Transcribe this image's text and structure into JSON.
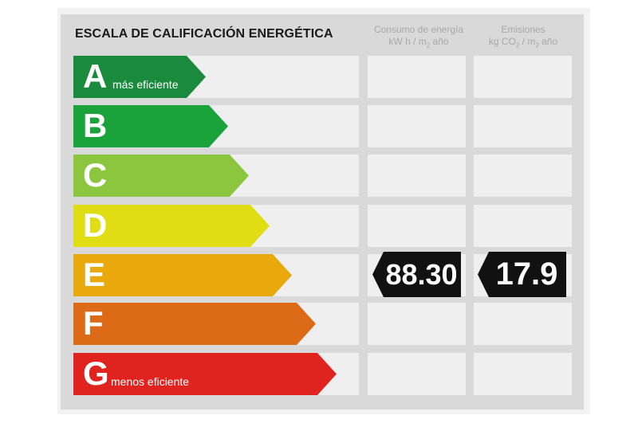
{
  "title": "ESCALA DE CALIFICACIÓN ENERGÉTICA",
  "columns": {
    "consumo": {
      "line1": "Consumo de energía",
      "line2_a": "kW h / m",
      "line2_sub": "2",
      "line2_b": " año"
    },
    "emisiones": {
      "line1": "Emisiones",
      "line2_a": "kg CO",
      "line2_sub": "2",
      "line2_b": " / m",
      "line2_sub2": "2",
      "line2_c": " año"
    }
  },
  "ratings": [
    {
      "letter": "A",
      "label": "más eficiente",
      "color": "#1a8a3c"
    },
    {
      "letter": "B",
      "label": "",
      "color": "#1aa33a"
    },
    {
      "letter": "C",
      "label": "",
      "color": "#8cc63e"
    },
    {
      "letter": "D",
      "label": "",
      "color": "#e0dd14"
    },
    {
      "letter": "E",
      "label": "",
      "color": "#e9a90c"
    },
    {
      "letter": "F",
      "label": "",
      "color": "#dc6a16"
    },
    {
      "letter": "G",
      "label": "menos eficiente",
      "color": "#e0231f"
    }
  ],
  "consumo_value": "88.30",
  "emisiones_value": "17.9",
  "current_rating": "E"
}
